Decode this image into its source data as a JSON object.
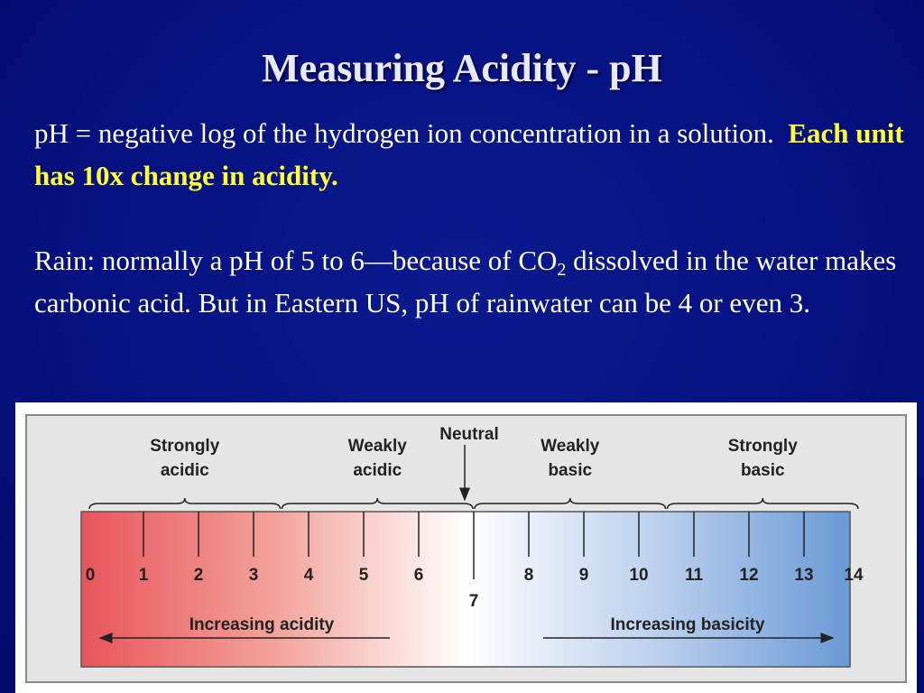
{
  "slide": {
    "title": "Measuring Acidity - pH",
    "para1_plain": "pH = negative log of the hydrogen ion concentration in a solution.",
    "para1_bold": "Each unit has 10x change in acidity.",
    "para2_line_a": "Rain: normally a pH of 5 to 6—because of CO",
    "para2_sub": "2",
    "para2_line_b": " dissolved in the water makes carbonic acid.  But in Eastern US, pH of rainwater can be 4 or even 3."
  },
  "diagram": {
    "scale_values": [
      "0",
      "1",
      "2",
      "3",
      "4",
      "5",
      "6",
      "7",
      "8",
      "9",
      "10",
      "11",
      "12",
      "13",
      "14"
    ],
    "neutral_label": "Neutral",
    "groups": [
      {
        "line1": "Strongly",
        "line2": "acidic"
      },
      {
        "line1": "Weakly",
        "line2": "acidic"
      },
      {
        "line1": "Weakly",
        "line2": "basic"
      },
      {
        "line1": "Strongly",
        "line2": "basic"
      }
    ],
    "left_arrow_label": "Increasing acidity",
    "right_arrow_label": "Increasing basicity",
    "colors": {
      "acid": "#e8545c",
      "neutral": "#ffffff",
      "base": "#6a9ad6"
    }
  }
}
